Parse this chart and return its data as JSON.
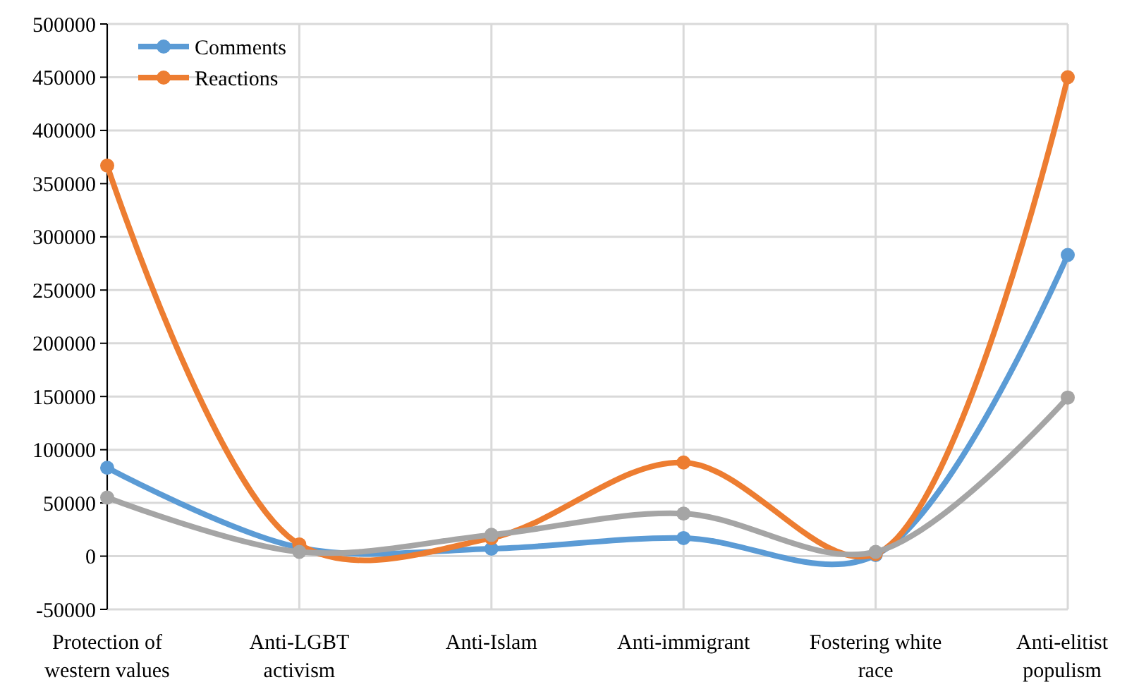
{
  "chart_data": {
    "type": "line",
    "categories": [
      "Protection of western values",
      "Anti-LGBT activism",
      "Anti-Islam",
      "Anti-immigrant",
      "Fostering white race",
      "Anti-elitist populism"
    ],
    "series": [
      {
        "name": "Comments",
        "color": "#5b9bd5",
        "values": [
          83000,
          8000,
          7000,
          17000,
          1000,
          283000
        ]
      },
      {
        "name": "Reactions",
        "color": "#ed7d31",
        "values": [
          367000,
          11000,
          17000,
          88000,
          2000,
          450000
        ]
      },
      {
        "color": "#a5a5a5",
        "values": [
          55000,
          4000,
          20000,
          40000,
          4000,
          149000
        ]
      }
    ],
    "ylim": [
      -50000,
      500000
    ],
    "yticks": [
      -50000,
      0,
      50000,
      100000,
      150000,
      200000,
      250000,
      300000,
      350000,
      400000,
      450000,
      500000
    ],
    "grid": true,
    "legend": "top left",
    "marker": "circle",
    "line_style": "solid"
  }
}
